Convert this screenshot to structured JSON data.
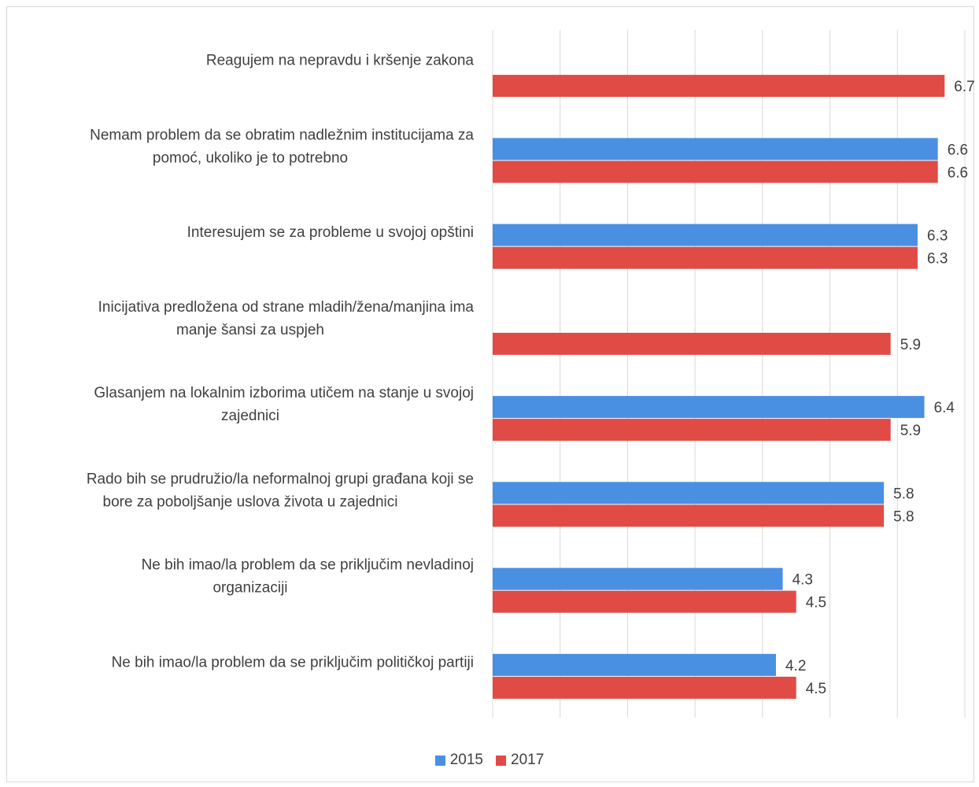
{
  "chart_data": {
    "type": "bar",
    "orientation": "horizontal",
    "title": "",
    "xlabel": "",
    "ylabel": "",
    "xlim": [
      0,
      7
    ],
    "grid": "vertical",
    "legend_position": "bottom",
    "categories": [
      [
        "Reagujem na nepravdu i kršenje zakona"
      ],
      [
        "Nemam problem da se obratim nadležnim institucijama za",
        "pomoć, ukoliko je to potrebno"
      ],
      [
        "Interesujem se za probleme u svojoj opštini"
      ],
      [
        "Inicijativa predložena od strane mladih/žena/manjina ima",
        "manje šansi za uspjeh"
      ],
      [
        "Glasanjem na lokalnim izborima utičem na stanje u svojoj",
        "zajednici"
      ],
      [
        "Rado bih se prudružio/la neformalnoj grupi građana koji se",
        "bore za poboljšanje uslova života u zajednici"
      ],
      [
        "Ne bih imao/la problem da se priključim nevladinoj",
        "organizaciji"
      ],
      [
        "Ne bih imao/la problem da se priključim političkoj partiji"
      ]
    ],
    "series": [
      {
        "name": "2015",
        "color": "#4a90e2",
        "values": [
          null,
          6.6,
          6.3,
          null,
          6.4,
          5.8,
          4.3,
          4.2
        ],
        "labels": [
          "",
          "6.6",
          "6.3",
          "",
          "6.4",
          "5.8",
          "4.3",
          "4.2"
        ]
      },
      {
        "name": "2017",
        "color": "#e04b45",
        "values": [
          6.7,
          6.6,
          6.3,
          5.9,
          5.9,
          5.8,
          4.5,
          4.5
        ],
        "labels": [
          "6.7",
          "6.6",
          "6.3",
          "5.9",
          "5.9",
          "5.8",
          "4.5",
          "4.5"
        ]
      }
    ]
  }
}
